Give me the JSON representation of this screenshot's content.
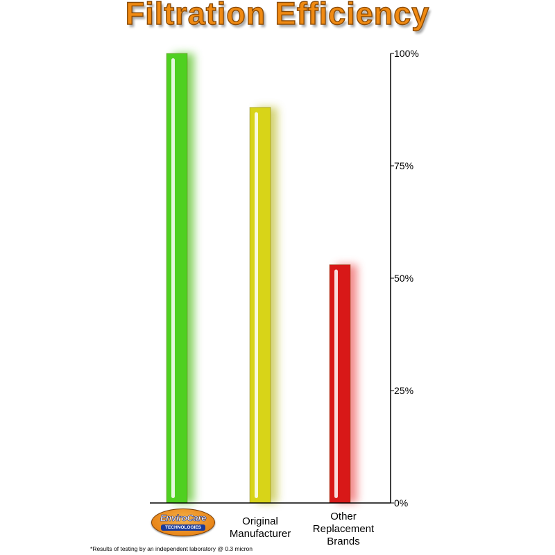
{
  "chart_data": {
    "type": "bar",
    "title": "Filtration Efficiency",
    "categories": [
      "EnviroCare Technologies",
      "Original Manufacturer",
      "Other Replacement Brands"
    ],
    "values": [
      100,
      88,
      53
    ],
    "ylim": [
      0,
      100
    ],
    "yticks": [
      "0%",
      "25%",
      "50%",
      "75%",
      "100%"
    ],
    "ytick_values": [
      0,
      25,
      50,
      75,
      100
    ],
    "bar_colors": [
      "#4fd020",
      "#d8d418",
      "#d81818"
    ],
    "glow_colors": [
      "#6ac83a",
      "#c8c850",
      "#f07070"
    ],
    "grid": false
  },
  "labels": {
    "title": "Filtration Efficiency",
    "cat2": "Original\nManufacturer",
    "cat3": "Other\nReplacement\nBrands",
    "footnote": "*Results of testing by an independent laboratory @ 0.3 micron"
  },
  "logo": {
    "brand": "EnviroCare",
    "sub": "TECHNOLOGIES"
  }
}
